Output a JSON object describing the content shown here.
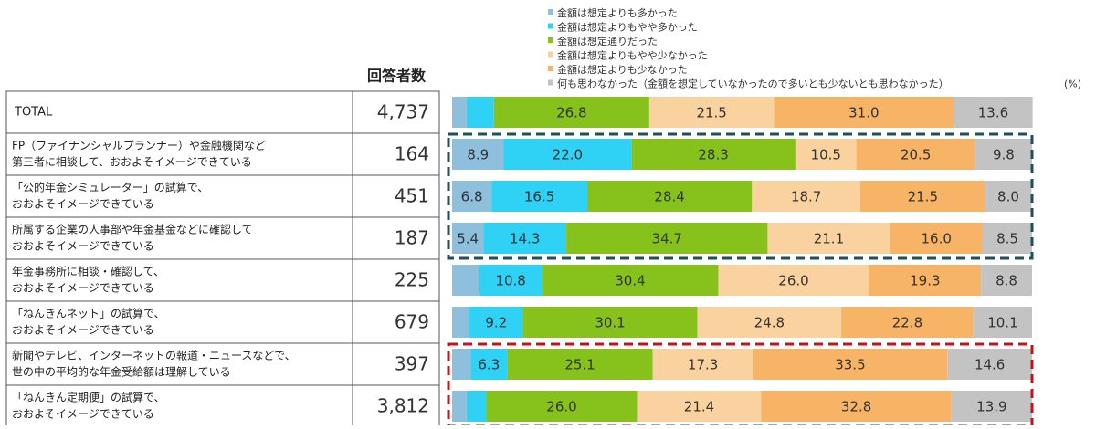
{
  "chart_data": {
    "type": "bar",
    "stacked": true,
    "orientation": "horizontal",
    "unit": "(%)",
    "respondents_header": "回答者数",
    "legend_position": "top",
    "legend": [
      "金額は想定よりも多かった",
      "金額は想定よりもやや多かった",
      "金額は想定通りだった",
      "金額は想定よりもやや少なかった",
      "金額は想定よりも少なかった",
      "何も思わなかった（金額を想定していなかったので多いとも少ないとも思わなかった）"
    ],
    "colors": [
      "#8ebfdc",
      "#2fd1f5",
      "#86c21b",
      "#fad2a0",
      "#f7b466",
      "#c3c3c3"
    ],
    "categories": [
      {
        "lines": [
          "TOTAL"
        ],
        "n": "4,737"
      },
      {
        "lines": [
          "FP（ファイナンシャルプランナー）や金融機関など",
          "第三者に相談して、おおよそイメージできている"
        ],
        "n": "164"
      },
      {
        "lines": [
          "「公的年金シミュレーター」の試算で、",
          "おおよそイメージできている"
        ],
        "n": "451"
      },
      {
        "lines": [
          "所属する企業の人事部や年金基金などに確認して",
          "おおよそイメージできている"
        ],
        "n": "187"
      },
      {
        "lines": [
          "年金事務所に相談・確認して、",
          "おおよそイメージできている"
        ],
        "n": "225"
      },
      {
        "lines": [
          "「ねんきんネット」の試算で、",
          "おおよそイメージできている"
        ],
        "n": "679"
      },
      {
        "lines": [
          "新聞やテレビ、インターネットの報道・ニュースなどで、",
          "世の中の平均的な年金受給額は理解している"
        ],
        "n": "397"
      },
      {
        "lines": [
          "「ねんきん定期便」の試算で、",
          "おおよそイメージできている"
        ],
        "n": "3,812"
      }
    ],
    "series": [
      {
        "name": "金額は想定よりも多かった",
        "values": [
          2.5,
          8.9,
          6.8,
          5.4,
          4.7,
          3.0,
          3.2,
          2.5
        ],
        "labels": [
          "",
          "8.9",
          "6.8",
          "5.4",
          "",
          "",
          "",
          ""
        ]
      },
      {
        "name": "金額は想定よりもやや多かった",
        "values": [
          4.7,
          22.0,
          16.5,
          14.3,
          10.8,
          9.2,
          6.3,
          3.4
        ],
        "labels": [
          "",
          "22.0",
          "16.5",
          "14.3",
          "10.8",
          "9.2",
          "6.3",
          ""
        ]
      },
      {
        "name": "金額は想定通りだった",
        "values": [
          26.8,
          28.3,
          28.4,
          34.7,
          30.4,
          30.1,
          25.1,
          26.0
        ],
        "labels": [
          "26.8",
          "28.3",
          "28.4",
          "34.7",
          "30.4",
          "30.1",
          "25.1",
          "26.0"
        ]
      },
      {
        "name": "金額は想定よりもやや少なかった",
        "values": [
          21.5,
          10.5,
          18.7,
          21.1,
          26.0,
          24.8,
          17.3,
          21.4
        ],
        "labels": [
          "21.5",
          "10.5",
          "18.7",
          "21.1",
          "26.0",
          "24.8",
          "17.3",
          "21.4"
        ]
      },
      {
        "name": "金額は想定よりも少なかった",
        "values": [
          31.0,
          20.5,
          21.5,
          16.0,
          19.3,
          22.8,
          33.5,
          32.8
        ],
        "labels": [
          "31.0",
          "20.5",
          "21.5",
          "16.0",
          "19.3",
          "22.8",
          "33.5",
          "32.8"
        ]
      },
      {
        "name": "何も思わなかった（金額を想定していなかったので多いとも少ないとも思わなかった）",
        "values": [
          13.6,
          9.8,
          8.0,
          8.5,
          8.8,
          10.1,
          14.6,
          13.9
        ],
        "labels": [
          "13.6",
          "9.8",
          "8.0",
          "8.5",
          "8.8",
          "10.1",
          "14.6",
          "13.9"
        ]
      }
    ],
    "highlight_groups": [
      {
        "rows": [
          1,
          3
        ],
        "color": "#1f4e5f"
      },
      {
        "rows": [
          6,
          7
        ],
        "color": "#c0141c"
      }
    ]
  }
}
